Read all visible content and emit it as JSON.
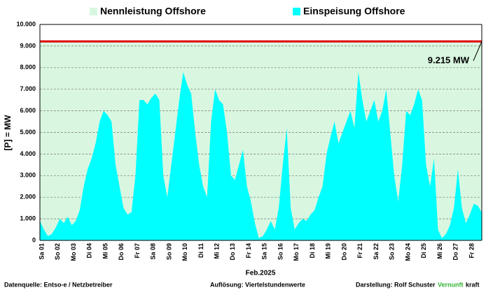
{
  "chart_data": {
    "type": "area",
    "ylabel": "[P] = MW",
    "xlabel": "Feb.2025",
    "capacity": {
      "name": "Nennleistung Offshore",
      "value": 9215,
      "label": "9.215 MW",
      "color": "#d9f7e0",
      "line_color": "#e00000"
    },
    "categories": [
      "Sa 01",
      null,
      null,
      null,
      "So 02",
      null,
      null,
      null,
      "Mo 03",
      null,
      null,
      null,
      "Di 04",
      null,
      null,
      null,
      "Mi 05",
      null,
      null,
      null,
      "Do 06",
      null,
      null,
      null,
      "Fr 07",
      null,
      null,
      null,
      "Sa 08",
      null,
      null,
      null,
      "So 09",
      null,
      null,
      null,
      "Mo 10",
      null,
      null,
      null,
      "Di 11",
      null,
      null,
      null,
      "Mi 12",
      null,
      null,
      null,
      "Do 13",
      null,
      null,
      null,
      "Fr 14",
      null,
      null,
      null,
      "Sa 15",
      null,
      null,
      null,
      "So 16",
      null,
      null,
      null,
      "Mo 17",
      null,
      null,
      null,
      "Di 18",
      null,
      null,
      null,
      "Mi 19",
      null,
      null,
      null,
      "Do 20",
      null,
      null,
      null,
      "Fr 21",
      null,
      null,
      null,
      "Sa 22",
      null,
      null,
      null,
      "So 23",
      null,
      null,
      null,
      "Mo 24",
      null,
      null,
      null,
      "Di 25",
      null,
      null,
      null,
      "Mi 26",
      null,
      null,
      null,
      "Do 27",
      null,
      null,
      null,
      "Fr 28",
      null,
      null,
      null
    ],
    "series": [
      {
        "name": "Einspeisung Offshore",
        "color": "#00ffff",
        "values": [
          900,
          500,
          200,
          300,
          600,
          1000,
          800,
          1100,
          700,
          900,
          1400,
          2500,
          3300,
          3800,
          4500,
          5500,
          6000,
          5800,
          5500,
          3500,
          2500,
          1500,
          1200,
          1300,
          3000,
          6500,
          6500,
          6300,
          6600,
          6800,
          6500,
          3000,
          2000,
          3500,
          5000,
          6500,
          7800,
          7200,
          6800,
          5000,
          3500,
          2500,
          2000,
          5500,
          7000,
          6500,
          6300,
          5000,
          3000,
          2800,
          3500,
          4200,
          2500,
          1800,
          800,
          100,
          200,
          500,
          900,
          500,
          1500,
          3500,
          5200,
          1500,
          500,
          800,
          1000,
          900,
          1200,
          1400,
          2000,
          2500,
          4000,
          4800,
          5500,
          4500,
          5000,
          5500,
          6000,
          5200,
          7800,
          6500,
          5500,
          6000,
          6500,
          5500,
          6000,
          7000,
          5000,
          3000,
          1800,
          3500,
          6000,
          5800,
          6300,
          7000,
          6500,
          3500,
          2500,
          3800,
          500,
          100,
          300,
          700,
          1500,
          3300,
          1500,
          800,
          1200,
          1700,
          1600,
          1300
        ]
      }
    ],
    "ylim": [
      0,
      10000
    ],
    "yticks": [
      0,
      {
        "value": 1000,
        "label": "1.000"
      },
      {
        "value": 2000,
        "label": "2.000"
      },
      {
        "value": 3000,
        "label": "3.000"
      },
      {
        "value": 4000,
        "label": "4.000"
      },
      {
        "value": 5000,
        "label": "5.000"
      },
      {
        "value": 6000,
        "label": "6.000"
      },
      {
        "value": 7000,
        "label": "7.000"
      },
      {
        "value": 8000,
        "label": "8.000"
      },
      {
        "value": 9000,
        "label": "9.000"
      },
      {
        "value": 10000,
        "label": "10.000"
      }
    ],
    "grid": true,
    "footer": {
      "source": "Datenquelle:  Entso-e  / Netzbetreiber",
      "resolution": "Auflösung: Viertelstundenwerte",
      "author": "Darstellung:  Rolf Schuster",
      "brand_green": "Vernunft",
      "brand_black": "kraft"
    }
  }
}
